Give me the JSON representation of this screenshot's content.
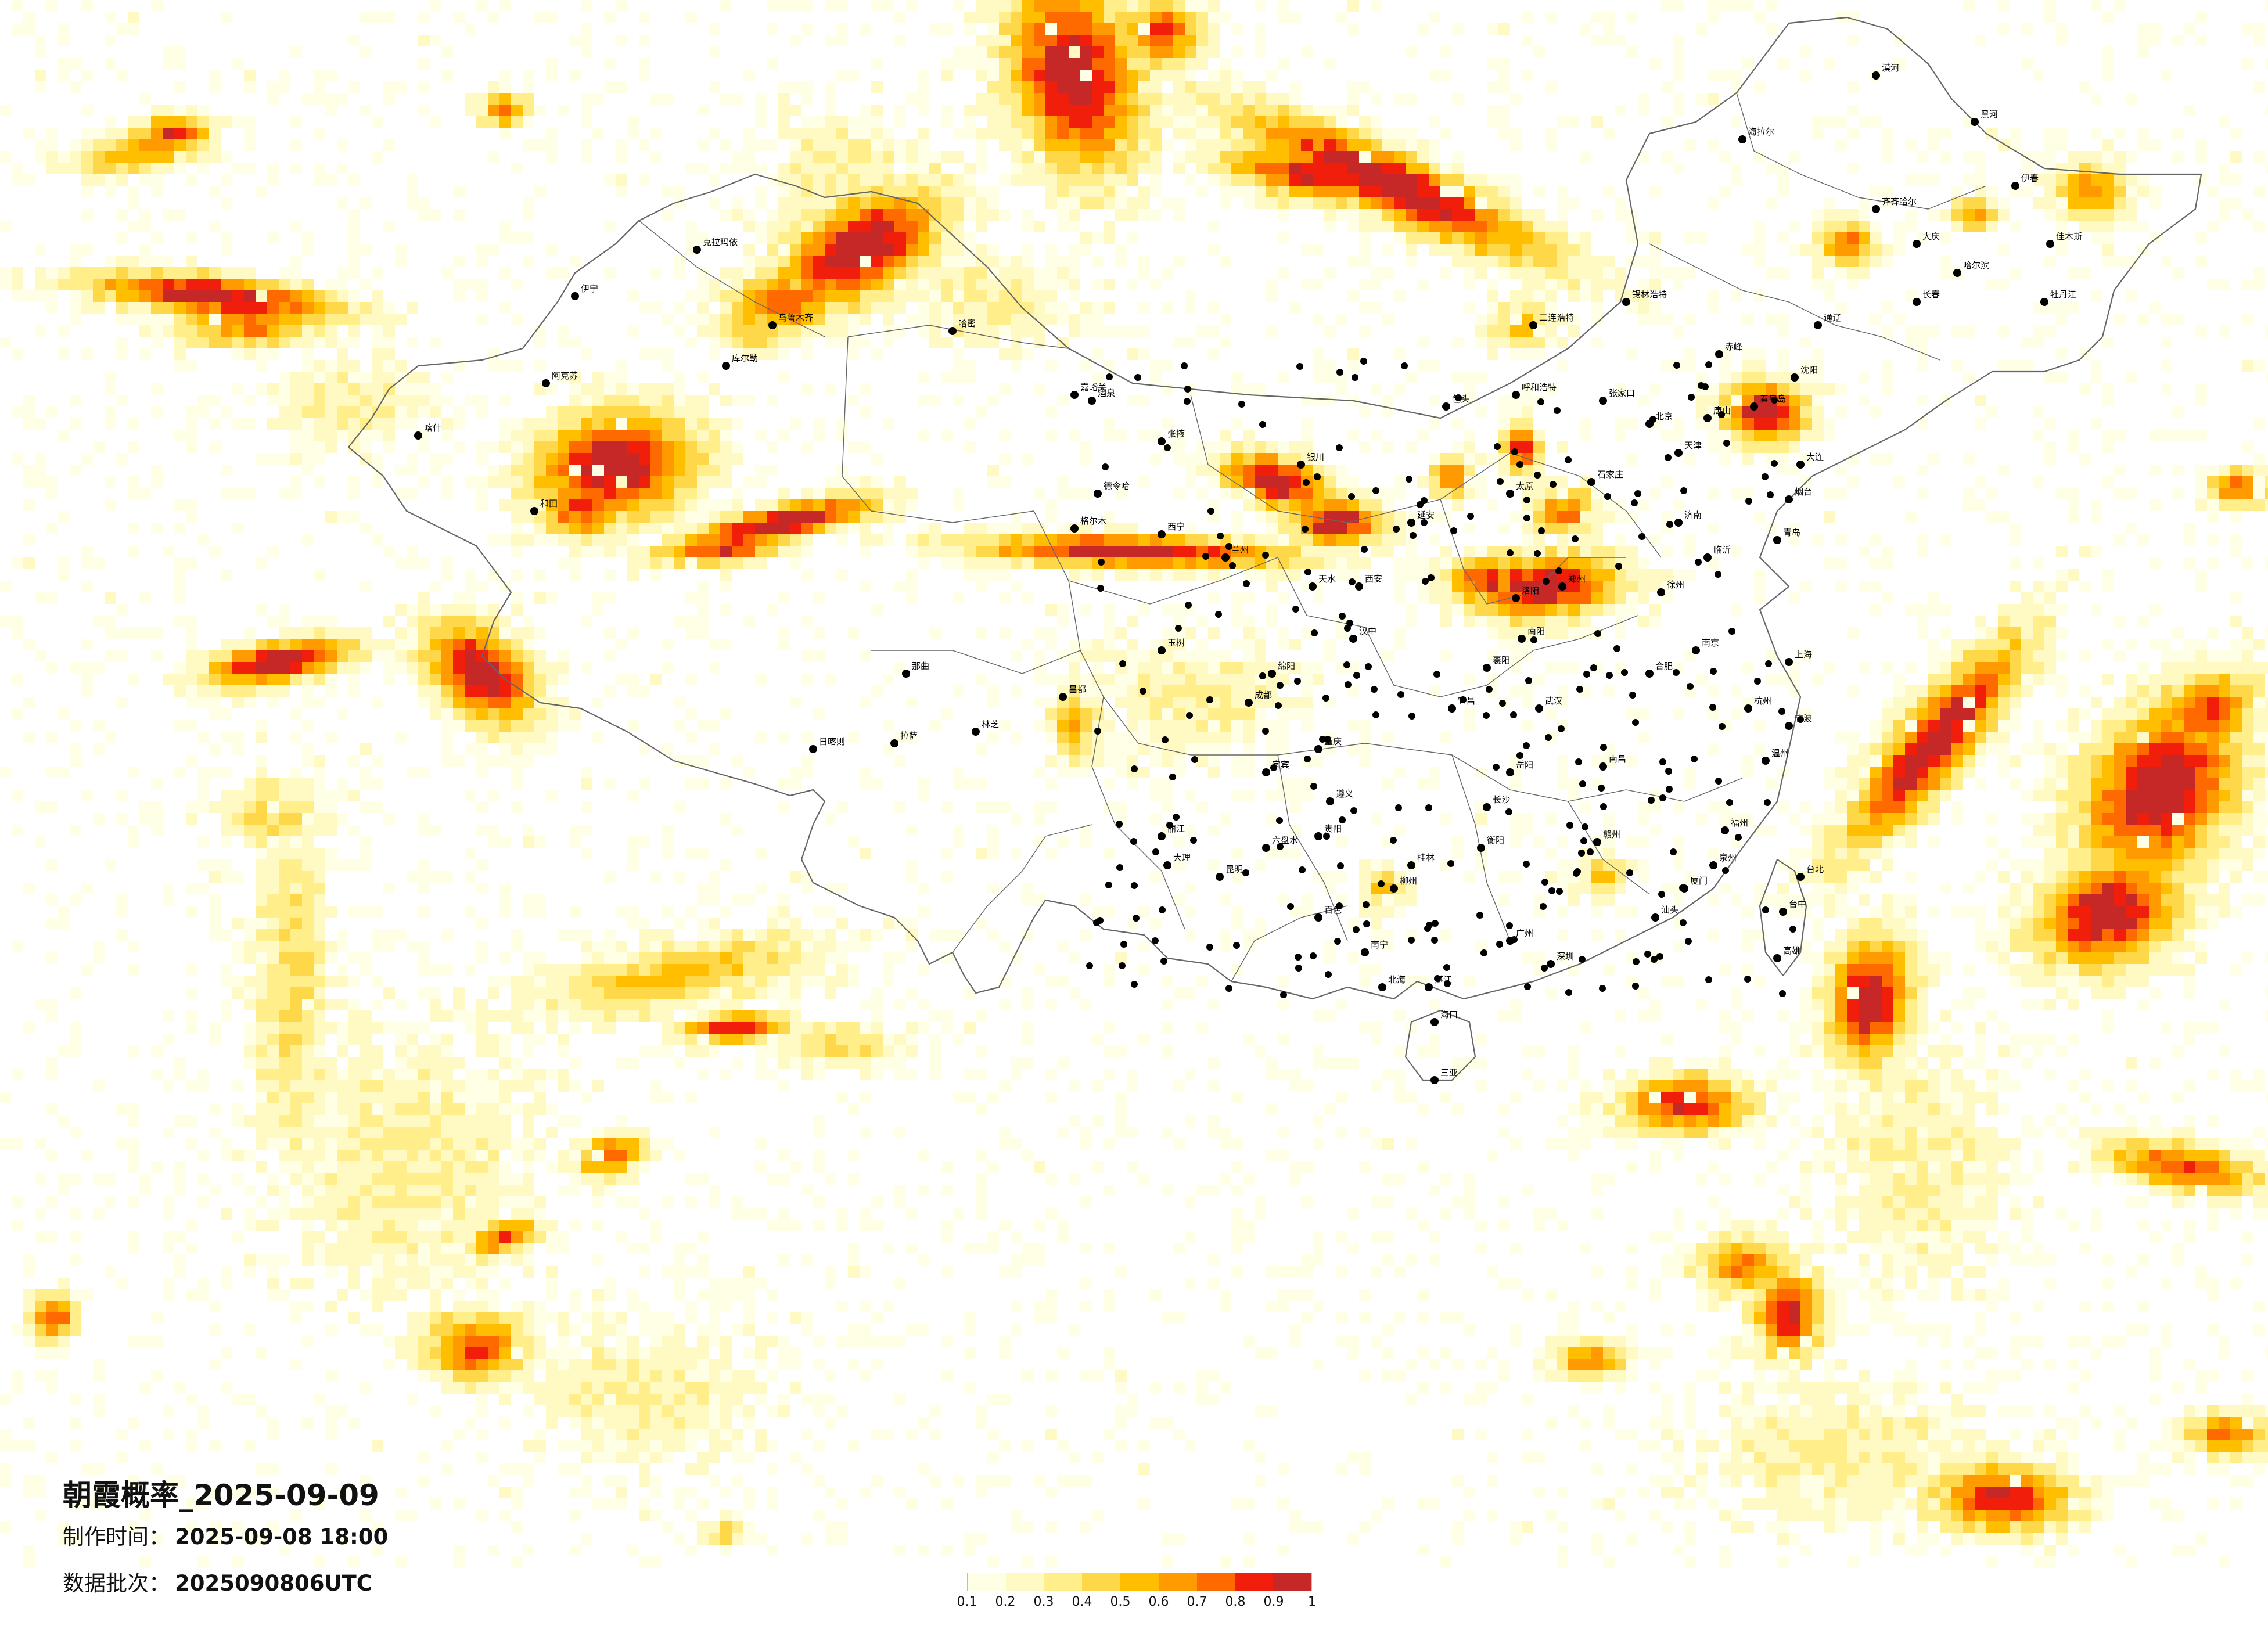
{
  "map": {
    "title": "朝霞概率_2025-09-09",
    "made_time_label": "制作时间：",
    "made_time_value": "2025-09-08 18:00",
    "data_batch_label": "数据批次：",
    "data_batch_value": "2025090806UTC"
  },
  "legend": {
    "ticks": [
      "0.1",
      "0.2",
      "0.3",
      "0.4",
      "0.5",
      "0.6",
      "0.7",
      "0.8",
      "0.9",
      "1"
    ],
    "colors": [
      "#ffffe6",
      "#fff9c4",
      "#ffee8a",
      "#ffd84a",
      "#ffbf00",
      "#ff9a00",
      "#ff6a00",
      "#f01e0a",
      "#c62828"
    ]
  },
  "cities": [
    {
      "name": "哈尔滨"
    },
    {
      "name": "长春"
    },
    {
      "name": "沈阳"
    },
    {
      "name": "北京"
    },
    {
      "name": "天津"
    },
    {
      "name": "石家庄"
    },
    {
      "name": "太原"
    },
    {
      "name": "呼和浩特"
    },
    {
      "name": "济南"
    },
    {
      "name": "郑州"
    },
    {
      "name": "西安"
    },
    {
      "name": "兰州"
    },
    {
      "name": "西宁"
    },
    {
      "name": "银川"
    },
    {
      "name": "乌鲁木齐"
    },
    {
      "name": "拉萨"
    },
    {
      "name": "成都"
    },
    {
      "name": "重庆"
    },
    {
      "name": "贵阳"
    },
    {
      "name": "昆明"
    },
    {
      "name": "南宁"
    },
    {
      "name": "广州"
    },
    {
      "name": "海口"
    },
    {
      "name": "长沙"
    },
    {
      "name": "武汉"
    },
    {
      "name": "南昌"
    },
    {
      "name": "福州"
    },
    {
      "name": "杭州"
    },
    {
      "name": "合肥"
    },
    {
      "name": "南京"
    },
    {
      "name": "上海"
    },
    {
      "name": "台北"
    },
    {
      "name": "喀什"
    },
    {
      "name": "和田"
    },
    {
      "name": "伊宁"
    },
    {
      "name": "克拉玛依"
    },
    {
      "name": "哈密"
    },
    {
      "name": "库尔勒"
    },
    {
      "name": "阿克苏"
    },
    {
      "name": "格尔木"
    },
    {
      "name": "德令哈"
    },
    {
      "name": "玉树"
    },
    {
      "name": "那曲"
    },
    {
      "name": "日喀则"
    },
    {
      "name": "林芝"
    },
    {
      "name": "昌都"
    },
    {
      "name": "海拉尔"
    },
    {
      "name": "齐齐哈尔"
    },
    {
      "name": "大连"
    },
    {
      "name": "青岛"
    },
    {
      "name": "厦门"
    },
    {
      "name": "三亚"
    },
    {
      "name": "丽江"
    },
    {
      "name": "大理"
    },
    {
      "name": "桂林"
    },
    {
      "name": "赣州"
    },
    {
      "name": "洛阳"
    },
    {
      "name": "包头"
    },
    {
      "name": "佳木斯"
    },
    {
      "name": "牡丹江"
    },
    {
      "name": "大庆"
    },
    {
      "name": "赤峰"
    },
    {
      "name": "通辽"
    },
    {
      "name": "张家口"
    },
    {
      "name": "唐山"
    },
    {
      "name": "秦皇岛"
    },
    {
      "name": "宁波"
    },
    {
      "name": "温州"
    },
    {
      "name": "汕头"
    },
    {
      "name": "深圳"
    },
    {
      "name": "北海"
    },
    {
      "name": "湛江"
    },
    {
      "name": "泉州"
    },
    {
      "name": "台中"
    },
    {
      "name": "高雄"
    },
    {
      "name": "酒泉"
    },
    {
      "name": "嘉峪关"
    },
    {
      "name": "张掖"
    },
    {
      "name": "天水"
    },
    {
      "name": "汉中"
    },
    {
      "name": "绵阳"
    },
    {
      "name": "宜宾"
    },
    {
      "name": "遵义"
    },
    {
      "name": "六盘水"
    },
    {
      "name": "百色"
    },
    {
      "name": "柳州"
    },
    {
      "name": "衡阳"
    },
    {
      "name": "岳阳"
    },
    {
      "name": "宜昌"
    },
    {
      "name": "襄阳"
    },
    {
      "name": "南阳"
    },
    {
      "name": "徐州"
    },
    {
      "name": "临沂"
    },
    {
      "name": "烟台"
    },
    {
      "name": "漠河"
    },
    {
      "name": "黑河"
    },
    {
      "name": "伊春"
    },
    {
      "name": "二连浩特"
    },
    {
      "name": "锡林浩特"
    },
    {
      "name": "延安"
    }
  ]
}
